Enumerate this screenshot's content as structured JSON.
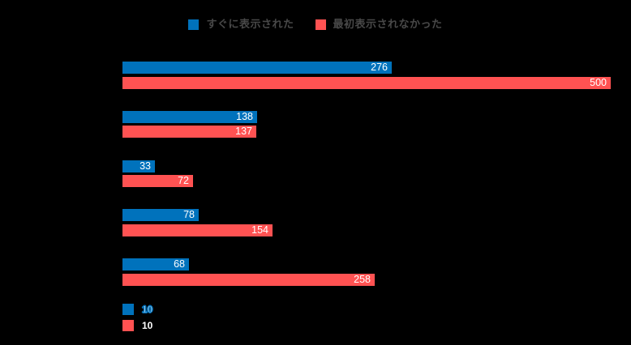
{
  "background_color": "#000000",
  "colors": {
    "blue": "#0072BC",
    "red": "#FF5252",
    "bar_value_label": "#FFFFFF",
    "legend_text": "#484848"
  },
  "legend": {
    "items": [
      {
        "label": "すぐに表示された",
        "color": "#0072BC"
      },
      {
        "label": "最初表示されなかった",
        "color": "#FF5252"
      }
    ]
  },
  "chart_data": {
    "type": "bar",
    "orientation": "horizontal",
    "title": "",
    "xlabel": "",
    "ylabel": "",
    "xlim": [
      0,
      500
    ],
    "grid": false,
    "legend_position": "top-center",
    "value_labels": "inside-end, white",
    "categories": [
      "",
      "",
      "",
      "",
      ""
    ],
    "series": [
      {
        "name": "すぐに表示された",
        "color": "#0072BC",
        "values": [
          276,
          138,
          33,
          78,
          68
        ]
      },
      {
        "name": "最初表示されなかった",
        "color": "#FF5252",
        "values": [
          500,
          137,
          72,
          154,
          258
        ]
      }
    ]
  },
  "footer_legend": {
    "items": [
      {
        "label": "10",
        "color": "#0072BC",
        "label_style": "white-text-blue-outline"
      },
      {
        "label": "10",
        "color": "#FF5252",
        "label_style": "white-text"
      }
    ]
  }
}
